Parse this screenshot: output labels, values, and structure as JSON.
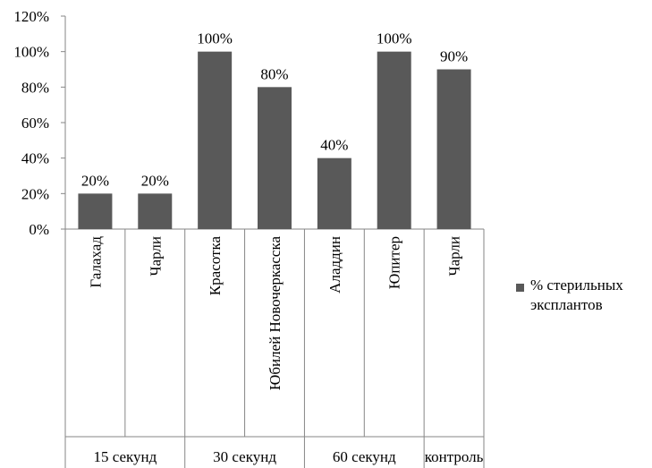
{
  "chart_data": {
    "type": "bar",
    "categories": [
      "Галахад",
      "Чарли",
      "Красотка",
      "Юбилей Новочеркасска",
      "Аладдин",
      "Юпитер",
      "Чарли"
    ],
    "groups": [
      {
        "label": "15 секунд",
        "categories": [
          0,
          1
        ]
      },
      {
        "label": "30 секунд",
        "categories": [
          2,
          3
        ]
      },
      {
        "label": "60 секунд",
        "categories": [
          4,
          5
        ]
      },
      {
        "label": "контроль",
        "categories": [
          6
        ]
      }
    ],
    "series": [
      {
        "name": "% стерильных эксплантов",
        "values": [
          20,
          20,
          100,
          80,
          40,
          100,
          90
        ],
        "color": "#595959"
      }
    ],
    "data_labels": [
      "20%",
      "20%",
      "100%",
      "80%",
      "40%",
      "100%",
      "90%"
    ],
    "y_ticks": [
      "0%",
      "20%",
      "40%",
      "60%",
      "80%",
      "100%",
      "120%"
    ],
    "ylim": [
      0,
      120
    ],
    "grid": false,
    "legend_position": "right",
    "title": "",
    "xlabel": "",
    "ylabel": ""
  }
}
